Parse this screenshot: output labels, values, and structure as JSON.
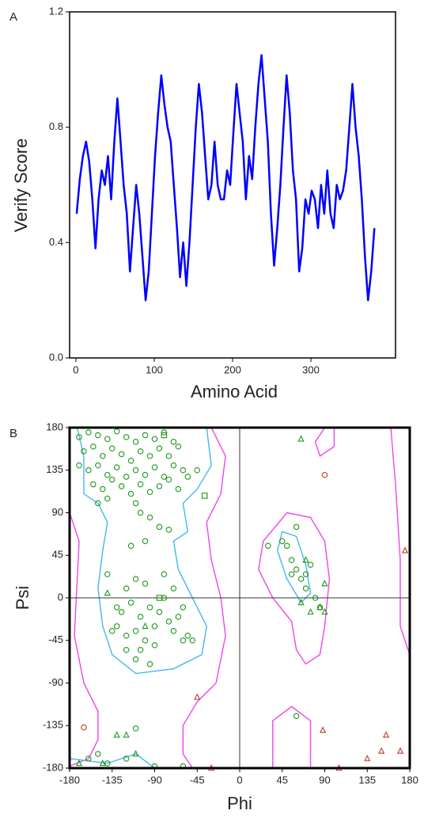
{
  "chart_data": [
    {
      "type": "line",
      "panel": "A",
      "xlabel": "Amino Acid",
      "ylabel": "Verify Score",
      "color": "#0000ff",
      "xlim": [
        -8,
        408
      ],
      "ylim": [
        0,
        1.2
      ],
      "xticks": [
        0,
        100,
        200,
        300
      ],
      "yticks": [
        {
          "value": 0,
          "label": "0.0"
        },
        0.4,
        0.8,
        1.2
      ],
      "x": [
        1,
        5,
        9,
        13,
        17,
        21,
        25,
        29,
        33,
        37,
        41,
        45,
        49,
        53,
        57,
        61,
        65,
        69,
        73,
        77,
        81,
        85,
        89,
        93,
        97,
        101,
        105,
        109,
        113,
        117,
        121,
        125,
        129,
        133,
        137,
        141,
        145,
        149,
        153,
        157,
        161,
        165,
        169,
        173,
        177,
        181,
        185,
        189,
        193,
        197,
        201,
        205,
        209,
        213,
        217,
        221,
        225,
        229,
        233,
        237,
        241,
        245,
        249,
        253,
        257,
        261,
        265,
        269,
        273,
        277,
        281,
        285,
        289,
        293,
        297,
        301,
        305,
        309,
        313,
        317,
        321,
        325,
        329,
        333,
        337,
        341,
        345,
        349,
        353,
        357,
        361,
        365,
        369,
        373,
        377,
        381
      ],
      "values": [
        0.5,
        0.62,
        0.7,
        0.75,
        0.68,
        0.55,
        0.38,
        0.55,
        0.65,
        0.6,
        0.7,
        0.55,
        0.75,
        0.9,
        0.75,
        0.6,
        0.5,
        0.3,
        0.45,
        0.6,
        0.5,
        0.35,
        0.2,
        0.3,
        0.5,
        0.7,
        0.85,
        0.98,
        0.88,
        0.8,
        0.75,
        0.6,
        0.45,
        0.28,
        0.4,
        0.25,
        0.4,
        0.6,
        0.8,
        0.95,
        0.85,
        0.7,
        0.55,
        0.6,
        0.75,
        0.6,
        0.55,
        0.55,
        0.65,
        0.6,
        0.78,
        0.95,
        0.85,
        0.75,
        0.55,
        0.7,
        0.62,
        0.8,
        0.95,
        1.05,
        0.9,
        0.75,
        0.5,
        0.32,
        0.45,
        0.6,
        0.8,
        0.98,
        0.85,
        0.65,
        0.55,
        0.3,
        0.38,
        0.55,
        0.5,
        0.58,
        0.55,
        0.45,
        0.6,
        0.5,
        0.65,
        0.5,
        0.45,
        0.6,
        0.55,
        0.58,
        0.65,
        0.8,
        0.95,
        0.8,
        0.7,
        0.55,
        0.35,
        0.2,
        0.3,
        0.45
      ]
    },
    {
      "type": "scatter",
      "panel": "B",
      "xlabel": "Phi",
      "ylabel": "Psi",
      "zero_lines": true,
      "xlim": [
        -180,
        180
      ],
      "ylim": [
        -180,
        180
      ],
      "xticks": [
        -180,
        -135,
        -90,
        -45,
        0,
        45,
        90,
        135,
        180
      ],
      "yticks": [
        -180,
        -135,
        -90,
        -45,
        0,
        45,
        90,
        135,
        180
      ],
      "series": [
        {
          "marker": "circle",
          "color": "#1a9a1a",
          "x": [
            -170,
            -160,
            -150,
            -140,
            -130,
            -120,
            -110,
            -100,
            -90,
            -80,
            -70,
            -165,
            -155,
            -145,
            -135,
            -125,
            -115,
            -105,
            -95,
            -85,
            -75,
            -65,
            -170,
            -160,
            -150,
            -140,
            -130,
            -120,
            -110,
            -100,
            -90,
            -80,
            -70,
            -60,
            -155,
            -145,
            -135,
            -125,
            -115,
            -105,
            -95,
            -85,
            -75,
            -65,
            -55,
            -45,
            -150,
            -140,
            -110,
            -105,
            -95,
            -85,
            -75,
            -100,
            -115,
            -140,
            -120,
            -110,
            -100,
            -95,
            -105,
            -115,
            -125,
            -130,
            -120,
            -110,
            -100,
            -90,
            -85,
            -80,
            -75,
            -70,
            -65,
            -60,
            -55,
            -50,
            -60,
            -70,
            -80,
            -90,
            -105,
            -120,
            -95,
            -110,
            -130,
            -135,
            30,
            45,
            50,
            55,
            60,
            65,
            70,
            75,
            70,
            80,
            85,
            55,
            60,
            -160,
            -150,
            -140,
            -120,
            -90,
            -60,
            -110,
            60
          ],
          "values": [
            170,
            175,
            172,
            168,
            176,
            170,
            165,
            172,
            168,
            175,
            165,
            155,
            160,
            150,
            158,
            152,
            145,
            155,
            150,
            158,
            150,
            160,
            140,
            135,
            140,
            130,
            138,
            128,
            135,
            130,
            138,
            128,
            140,
            135,
            120,
            115,
            125,
            118,
            110,
            120,
            112,
            118,
            125,
            115,
            128,
            135,
            100,
            105,
            100,
            90,
            85,
            75,
            72,
            60,
            55,
            25,
            10,
            20,
            15,
            -10,
            -20,
            -5,
            -15,
            -30,
            -40,
            -35,
            -45,
            -30,
            -15,
            0,
            -25,
            -35,
            -20,
            -45,
            -40,
            -45,
            -10,
            10,
            25,
            -50,
            -55,
            -55,
            -70,
            -65,
            -10,
            -35,
            55,
            60,
            55,
            40,
            30,
            20,
            25,
            35,
            10,
            0,
            -10,
            25,
            75,
            -170,
            -165,
            -175,
            -170,
            -178,
            -178,
            -138,
            -125
          ]
        },
        {
          "marker": "triangle",
          "color": "#1a9a1a",
          "x": [
            -140,
            -100,
            70,
            65,
            90,
            85,
            75,
            -130,
            -145,
            -170,
            -110,
            -120,
            65,
            90
          ],
          "values": [
            5,
            -30,
            40,
            -5,
            -15,
            -10,
            -15,
            -145,
            -175,
            -175,
            -165,
            -145,
            168,
            15
          ]
        },
        {
          "marker": "square",
          "color": "#1a9a1a",
          "x": [
            -80,
            -37,
            -85
          ],
          "values": [
            172,
            108,
            0
          ]
        },
        {
          "marker": "circle",
          "color": "#c0392b",
          "x": [
            90,
            -165
          ],
          "values": [
            130,
            -137
          ]
        },
        {
          "marker": "triangle",
          "color": "#c0392b",
          "x": [
            -45,
            88,
            175,
            135,
            150,
            155,
            170,
            105,
            -30
          ],
          "values": [
            -105,
            -140,
            50,
            -170,
            -162,
            -145,
            -162,
            -180,
            -180
          ]
        }
      ]
    }
  ]
}
